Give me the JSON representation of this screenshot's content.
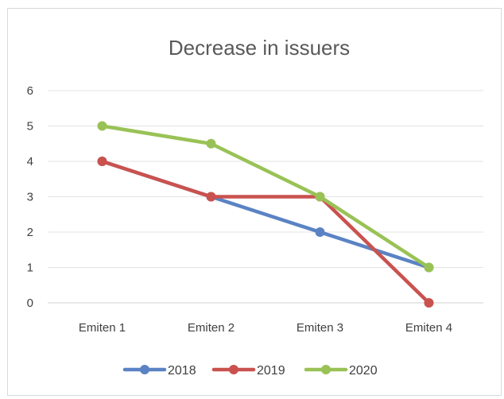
{
  "chart_data": {
    "type": "line",
    "title": "Decrease in issuers",
    "xlabel": "",
    "ylabel": "",
    "categories": [
      "Emiten 1",
      "Emiten 2",
      "Emiten 3",
      "Emiten 4"
    ],
    "ylim": [
      0,
      6
    ],
    "yticks": [
      "0",
      "1",
      "2",
      "3",
      "4",
      "5",
      "6"
    ],
    "grid": true,
    "legend": "bottom",
    "series": [
      {
        "name": "2018",
        "color": "#5b83c4",
        "values": [
          4,
          3,
          2,
          1
        ]
      },
      {
        "name": "2019",
        "color": "#c9524f",
        "values": [
          4,
          3,
          3,
          0
        ]
      },
      {
        "name": "2020",
        "color": "#99c256",
        "values": [
          5,
          4.5,
          3,
          1
        ]
      }
    ]
  }
}
